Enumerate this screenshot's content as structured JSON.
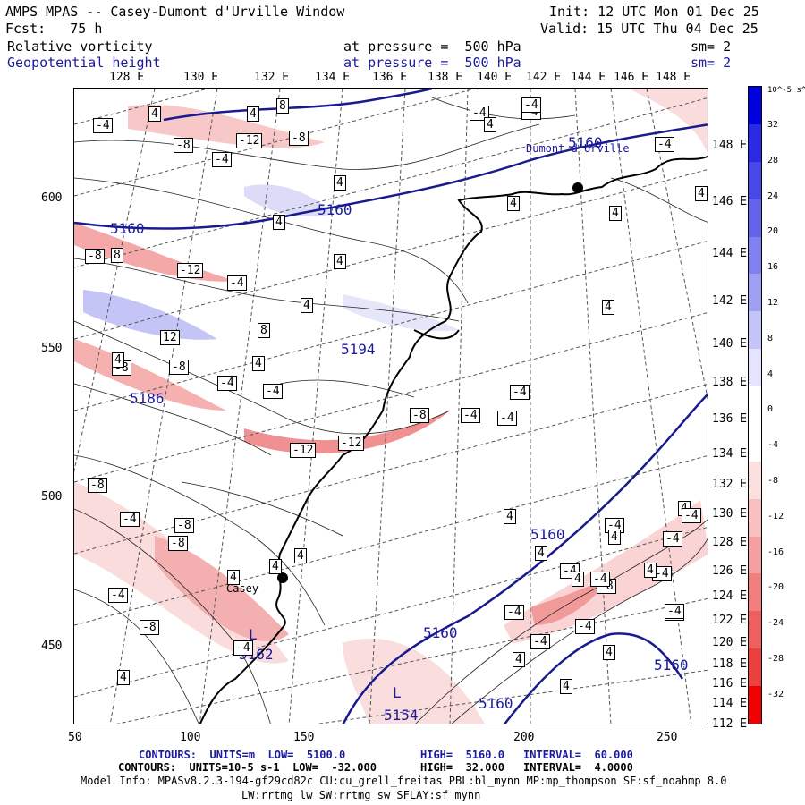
{
  "header": {
    "title": "AMPS MPAS -- Casey-Dumont d'Urville Window",
    "init": "Init: 12 UTC Mon 01 Dec 25",
    "fcst": "Fcst:   75 h",
    "valid": "Valid: 15 UTC Thu 04 Dec 25",
    "field1": "Relative vorticity",
    "field1_level": "at pressure =  500 hPa",
    "field1_sm": "sm= 2",
    "field2": "Geopotential height",
    "field2_level": "at pressure =  500 hPa",
    "field2_sm": "sm= 2"
  },
  "lon_labels": [
    "128 E",
    "130 E",
    "132 E",
    "134 E",
    "136 E",
    "138 E",
    "140 E",
    "142 E",
    "144 E",
    "146 E",
    "148 E"
  ],
  "lat_labels": [
    "148 E",
    "146 E",
    "144 E",
    "142 E",
    "140 E",
    "138 E",
    "136 E",
    "134 E",
    "132 E",
    "130 E",
    "128 E",
    "126 E",
    "124 E",
    "122 E",
    "120 E",
    "118 E",
    "116 E",
    "114 E",
    "112 E"
  ],
  "x_ticks": [
    "50",
    "100",
    "150",
    "200",
    "250"
  ],
  "y_ticks": [
    "600",
    "550",
    "500",
    "450"
  ],
  "colorbar": {
    "unit_label": "10^-5 s^-1",
    "labels": [
      "32",
      "28",
      "24",
      "20",
      "16",
      "12",
      "8",
      "4",
      "0",
      "-4",
      "-8",
      "-12",
      "-16",
      "-20",
      "-24",
      "-28",
      "-32"
    ],
    "colors": [
      "#0000e0",
      "#2a2ae6",
      "#4848e8",
      "#6464ea",
      "#8080ee",
      "#a0a0f2",
      "#c4c4f8",
      "#e4e4fc",
      "#ffffff",
      "#ffffff",
      "#fce0e0",
      "#f8c0c0",
      "#f4a0a0",
      "#f08080",
      "#ec6060",
      "#ec4040",
      "#f00000"
    ]
  },
  "stations": [
    {
      "name": "Dumont d'Urville"
    },
    {
      "name": "Casey"
    }
  ],
  "height_labels": [
    "5160",
    "5160",
    "5160",
    "5194",
    "5186",
    "5160",
    "5160",
    "5160",
    "5160",
    "L",
    "5162",
    "L",
    "5154"
  ],
  "vort_labels": [
    "-4",
    "4",
    "8",
    "-8",
    "-12",
    "-8",
    "-4",
    "-4",
    "4",
    "-4",
    "4",
    "8",
    "-8",
    "-12",
    "4",
    "-4",
    "4",
    "12",
    "8",
    "4",
    "-8",
    "-8",
    "-4",
    "-4",
    "4",
    "-8",
    "-4",
    "-8",
    "-12",
    "-12",
    "4",
    "-8",
    "4",
    "-4",
    "4",
    "-4",
    "-8",
    "4",
    "-8",
    "-4",
    "4",
    "-4",
    "-4",
    "4",
    "-4",
    "-4",
    "-8",
    "4",
    "-4",
    "-4",
    "-4",
    "-4",
    "-8",
    "-4",
    "4",
    "4",
    "4",
    "4",
    "4",
    "-4",
    "-4",
    "4",
    "4",
    "-4",
    "4",
    "-4",
    "4",
    "4",
    "4",
    "-4",
    "4"
  ],
  "footer": {
    "line1_a": "CONTOURS:  UNITS=m  LOW=  5100.0",
    "line1_b": "HIGH=  5160.0",
    "line1_c": "INTERVAL=  60.000",
    "line2_a": "CONTOURS:  UNITS=10-5 s-1  LOW=  -32.000",
    "line2_b": "HIGH=  32.000",
    "line2_c": "INTERVAL=  4.0000",
    "line3": "Model Info: MPASv8.2.3-194-gf29cd82c CU:cu_grell_freitas PBL:bl_mynn MP:mp_thompson SF:sf_noahmp 8.0",
    "line4": "LW:rrtmg_lw SW:rrtmg_sw SFLAY:sf_mynn"
  }
}
